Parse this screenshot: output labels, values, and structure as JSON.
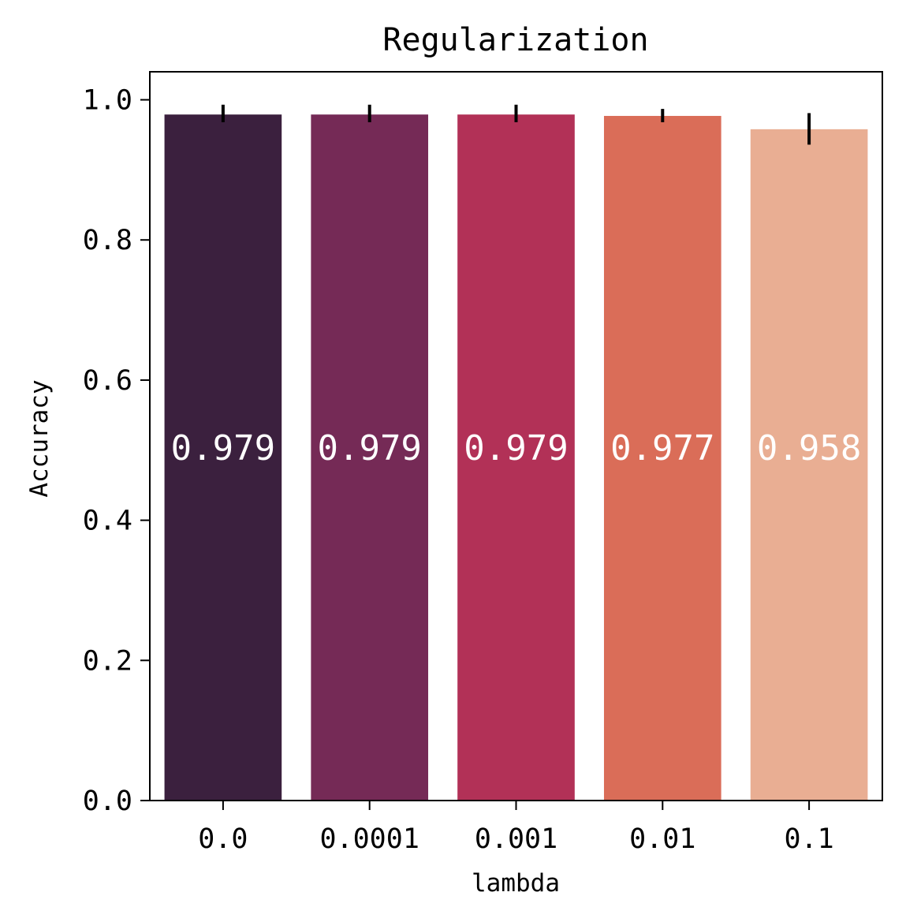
{
  "chart_data": {
    "type": "bar",
    "title": "Regularization",
    "xlabel": "lambda",
    "ylabel": "Accuracy",
    "categories": [
      "0.0",
      "0.0001",
      "0.001",
      "0.01",
      "0.1"
    ],
    "values": [
      0.979,
      0.979,
      0.979,
      0.977,
      0.958
    ],
    "value_labels": [
      "0.979",
      "0.979",
      "0.979",
      "0.977",
      "0.958"
    ],
    "error_low": [
      0.968,
      0.968,
      0.968,
      0.968,
      0.936
    ],
    "error_high": [
      0.993,
      0.993,
      0.993,
      0.987,
      0.981
    ],
    "colors": [
      "#3b203e",
      "#752a56",
      "#b23157",
      "#da6d58",
      "#e9ae93"
    ],
    "ylim": [
      0,
      1.04
    ],
    "yticks": [
      0.0,
      0.2,
      0.4,
      0.6,
      0.8,
      1.0
    ],
    "ytick_labels": [
      "0.0",
      "0.2",
      "0.4",
      "0.6",
      "0.8",
      "1.0"
    ],
    "grid": false,
    "label_color": "#ffffff",
    "errorbar_color": "#000000"
  }
}
